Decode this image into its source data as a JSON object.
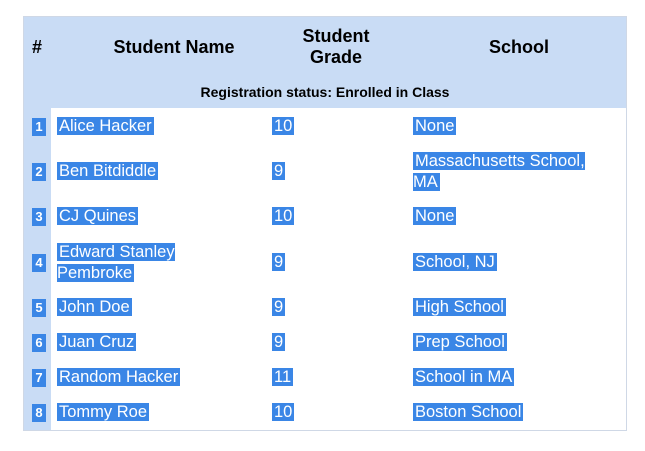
{
  "header": {
    "num": "#",
    "name": "Student Name",
    "grade": "Student Grade",
    "school": "School",
    "status": "Registration status: Enrolled in Class"
  },
  "rows": [
    {
      "index": "1",
      "name": "Alice Hacker",
      "grade": "10",
      "school": "None"
    },
    {
      "index": "2",
      "name": "Ben Bitdiddle",
      "grade": "9",
      "school": "Massachusetts School, MA"
    },
    {
      "index": "3",
      "name": "CJ Quines",
      "grade": "10",
      "school": "None"
    },
    {
      "index": "4",
      "name": "Edward Stanley Pembroke",
      "grade": "9",
      "school": "School, NJ"
    },
    {
      "index": "5",
      "name": "John Doe",
      "grade": "9",
      "school": "High School"
    },
    {
      "index": "6",
      "name": "Juan Cruz",
      "grade": "9",
      "school": "Prep School"
    },
    {
      "index": "7",
      "name": "Random Hacker",
      "grade": "11",
      "school": "School in MA"
    },
    {
      "index": "8",
      "name": "Tommy Roe",
      "grade": "10",
      "school": "Boston School"
    }
  ]
}
